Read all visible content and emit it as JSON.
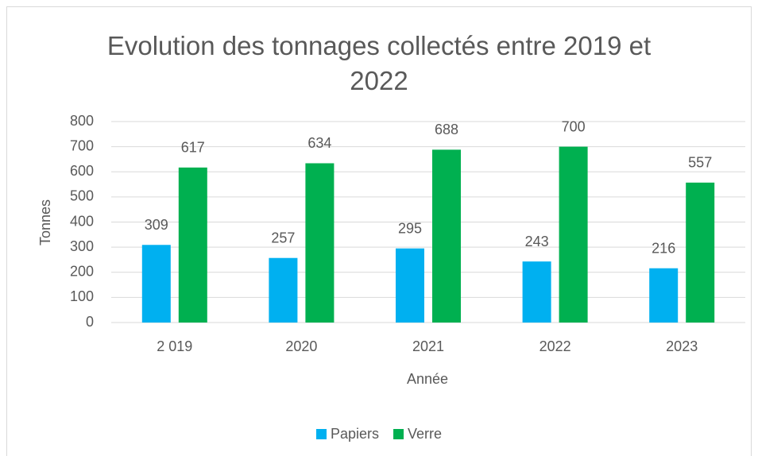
{
  "chart_data": {
    "type": "bar",
    "title": "Evolution des tonnages collectés entre 2019 et 2022",
    "x_label": "Année",
    "y_label": "Tonnes",
    "categories": [
      "2 019",
      "2020",
      "2021",
      "2022",
      "2023"
    ],
    "series": [
      {
        "name": "Papiers",
        "color": "#00b0f0",
        "values": [
          309,
          257,
          295,
          243,
          216
        ]
      },
      {
        "name": "Verre",
        "color": "#00b050",
        "values": [
          617,
          634,
          688,
          700,
          557
        ]
      }
    ],
    "ylim": [
      0,
      800
    ],
    "yticks": [
      0,
      100,
      200,
      300,
      400,
      500,
      600,
      700,
      800
    ],
    "grid": true,
    "legend": "bottom"
  }
}
